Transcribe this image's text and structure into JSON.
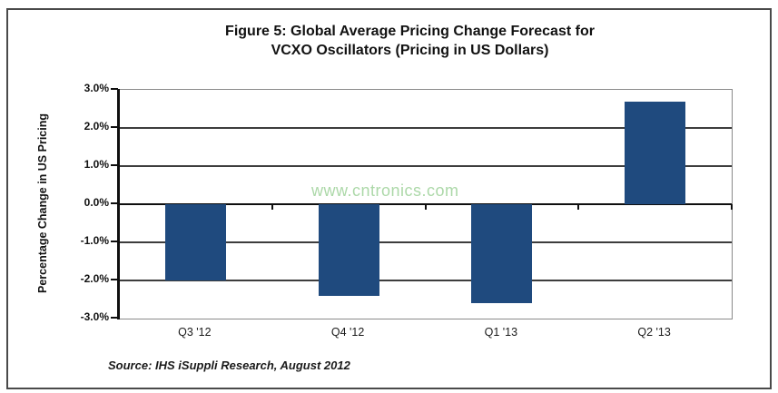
{
  "figure": {
    "title_line1": "Figure 5: Global Average Pricing Change Forecast for",
    "title_line2": "VCXO Oscillators (Pricing in US Dollars)",
    "watermark": "www.cntronics.com",
    "source": "Source: IHS iSuppli Research, August 2012"
  },
  "chart_data": {
    "type": "bar",
    "title": "Figure 5: Global Average Pricing Change Forecast for VCXO Oscillators (Pricing in US Dollars)",
    "categories": [
      "Q3 '12",
      "Q4 '12",
      "Q1 '13",
      "Q2 '13"
    ],
    "values": [
      -2.0,
      -2.4,
      -2.6,
      2.7
    ],
    "xlabel": "",
    "ylabel": "Percentage Change in US Pricing",
    "ylim": [
      -3.0,
      3.0
    ],
    "yticks": [
      3.0,
      2.0,
      1.0,
      0.0,
      -1.0,
      -2.0,
      -3.0
    ],
    "ytick_suffix": "%",
    "grid": true,
    "legend": false,
    "colors": {
      "bar": "#1F4A7E",
      "gridline": "#3d3d3d",
      "axis": "#0f0f0f",
      "plot_border": "#8a8a8a",
      "watermark": "#9ed29a",
      "frame": "#4a4a4a"
    },
    "source_note": "Source: IHS iSuppli Research, August 2012",
    "watermark_text": "www.cntronics.com"
  }
}
